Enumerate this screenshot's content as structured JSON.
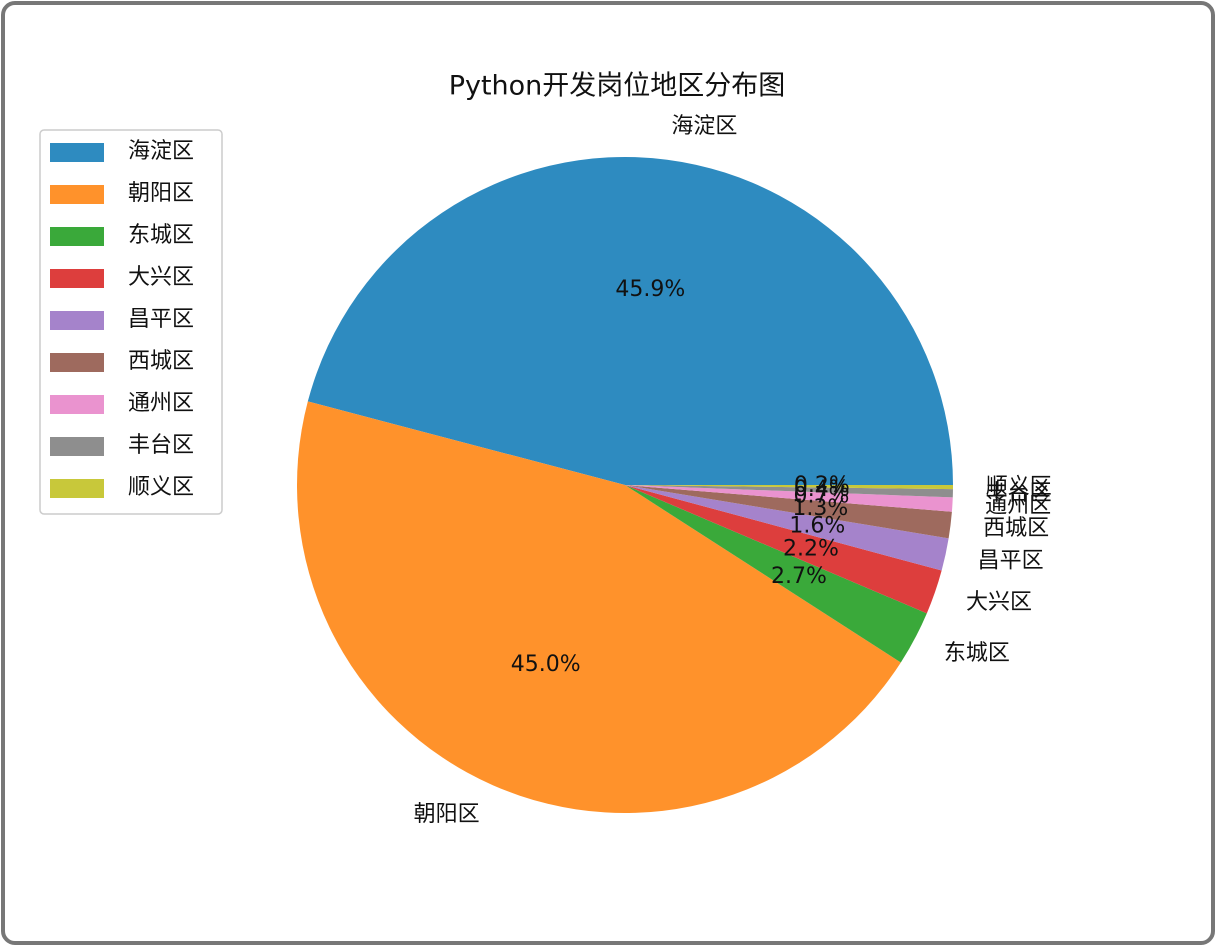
{
  "chart_data": {
    "type": "pie",
    "title": "Python开发岗位地区分布图",
    "categories": [
      "海淀区",
      "朝阳区",
      "东城区",
      "大兴区",
      "昌平区",
      "西城区",
      "通州区",
      "丰台区",
      "顺义区"
    ],
    "values": [
      45.9,
      45.0,
      2.7,
      2.2,
      1.6,
      1.3,
      0.7,
      0.4,
      0.2
    ],
    "value_labels": [
      "45.9%",
      "45.0%",
      "2.7%",
      "2.2%",
      "1.6%",
      "1.3%",
      "0.7%",
      "0.4%",
      "0.2%"
    ],
    "colors": [
      "#2e8bc0",
      "#ff922b",
      "#3aa93a",
      "#dd3e3d",
      "#a583cb",
      "#9e6a5e",
      "#ea93cf",
      "#8e8e8e",
      "#c8c83a"
    ],
    "legend": "upper left"
  }
}
